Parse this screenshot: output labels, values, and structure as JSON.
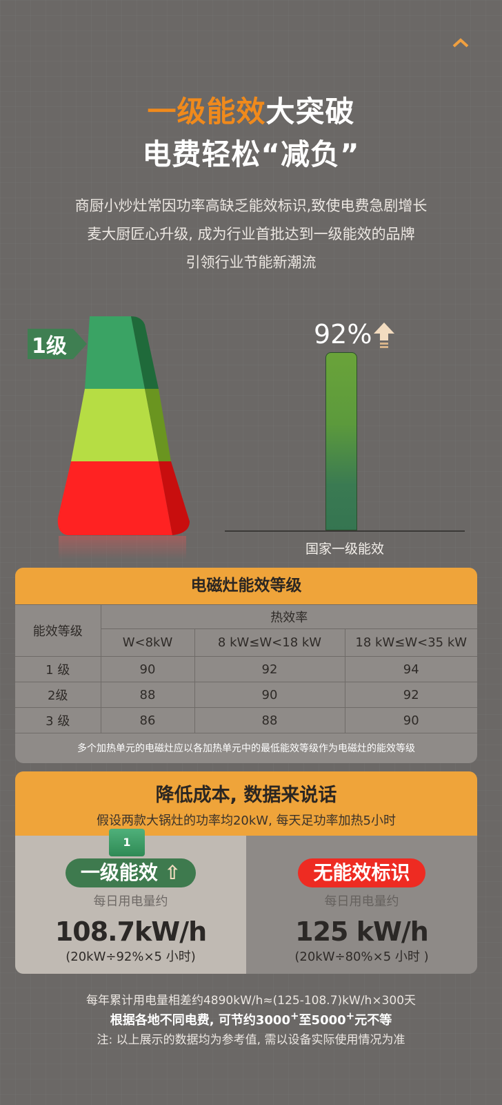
{
  "nav": {
    "icon": "chevron-up-icon",
    "color": "#f0a040"
  },
  "hero": {
    "title_highlight": "一级能效",
    "title_rest": "大突破",
    "title_line2": "电费轻松“减负”",
    "paragraph": [
      "商厨小炒灶常因功率高缺乏能效标识,致使电费急剧增长",
      "麦大厨匠心升级, 成为行业首批达到一级能效的品牌",
      "引领行业节能新潮流"
    ],
    "highlight_color": "#f08a1c"
  },
  "graphic": {
    "badge": "1级",
    "percent": "92%",
    "percent_value": 92,
    "bar_label": "国家一级能效",
    "arrow_icon": "arrow-up-icon",
    "pyramid_colors": [
      "#3aa364",
      "#b6dd44",
      "#ff2222"
    ]
  },
  "table": {
    "title": "电磁灶能效等级",
    "row_header": "能效等级",
    "group_header": "热效率",
    "columns": [
      "W<8kW",
      "8 kW≤W<18 kW",
      "18 kW≤W<35 kW"
    ],
    "rows": [
      {
        "grade": "1 级",
        "values": [
          "90",
          "92",
          "94"
        ]
      },
      {
        "grade": "2级",
        "values": [
          "88",
          "90",
          "92"
        ]
      },
      {
        "grade": "3 级",
        "values": [
          "86",
          "88",
          "90"
        ]
      }
    ],
    "footnote": "多个加热单元的电磁灶应以各加热单元中的最低能效等级作为电磁灶的能效等级"
  },
  "cost": {
    "title": "降低成本, 数据来说话",
    "subtitle": "假设两款大锅灶的功率均20kW, 每天足功率加热5小时",
    "left": {
      "box_label": "1",
      "pill": "一级能效",
      "caption": "每日用电量约",
      "value": "108.7kW/h",
      "formula": "(20kW÷92%×5 小时)",
      "pill_color": "#3e7a4e"
    },
    "right": {
      "pill": "无能效标识",
      "caption": "每日用电量约",
      "value": "125 kW/h",
      "formula": "(20kW÷80%×5 小时 )",
      "pill_color": "#ee2b22"
    }
  },
  "footer": {
    "line1": "每年累计用电量相差约4890kW/h≈(125-108.7)kW/h×300天",
    "line2_a": "根据各地不同电费, 可节约3000",
    "line2_sup1": "+",
    "line2_b": "至5000",
    "line2_sup2": "+",
    "line2_c": "元不等",
    "line3": "注: 以上展示的数据均为参考值, 需以设备实际使用情况为准"
  }
}
